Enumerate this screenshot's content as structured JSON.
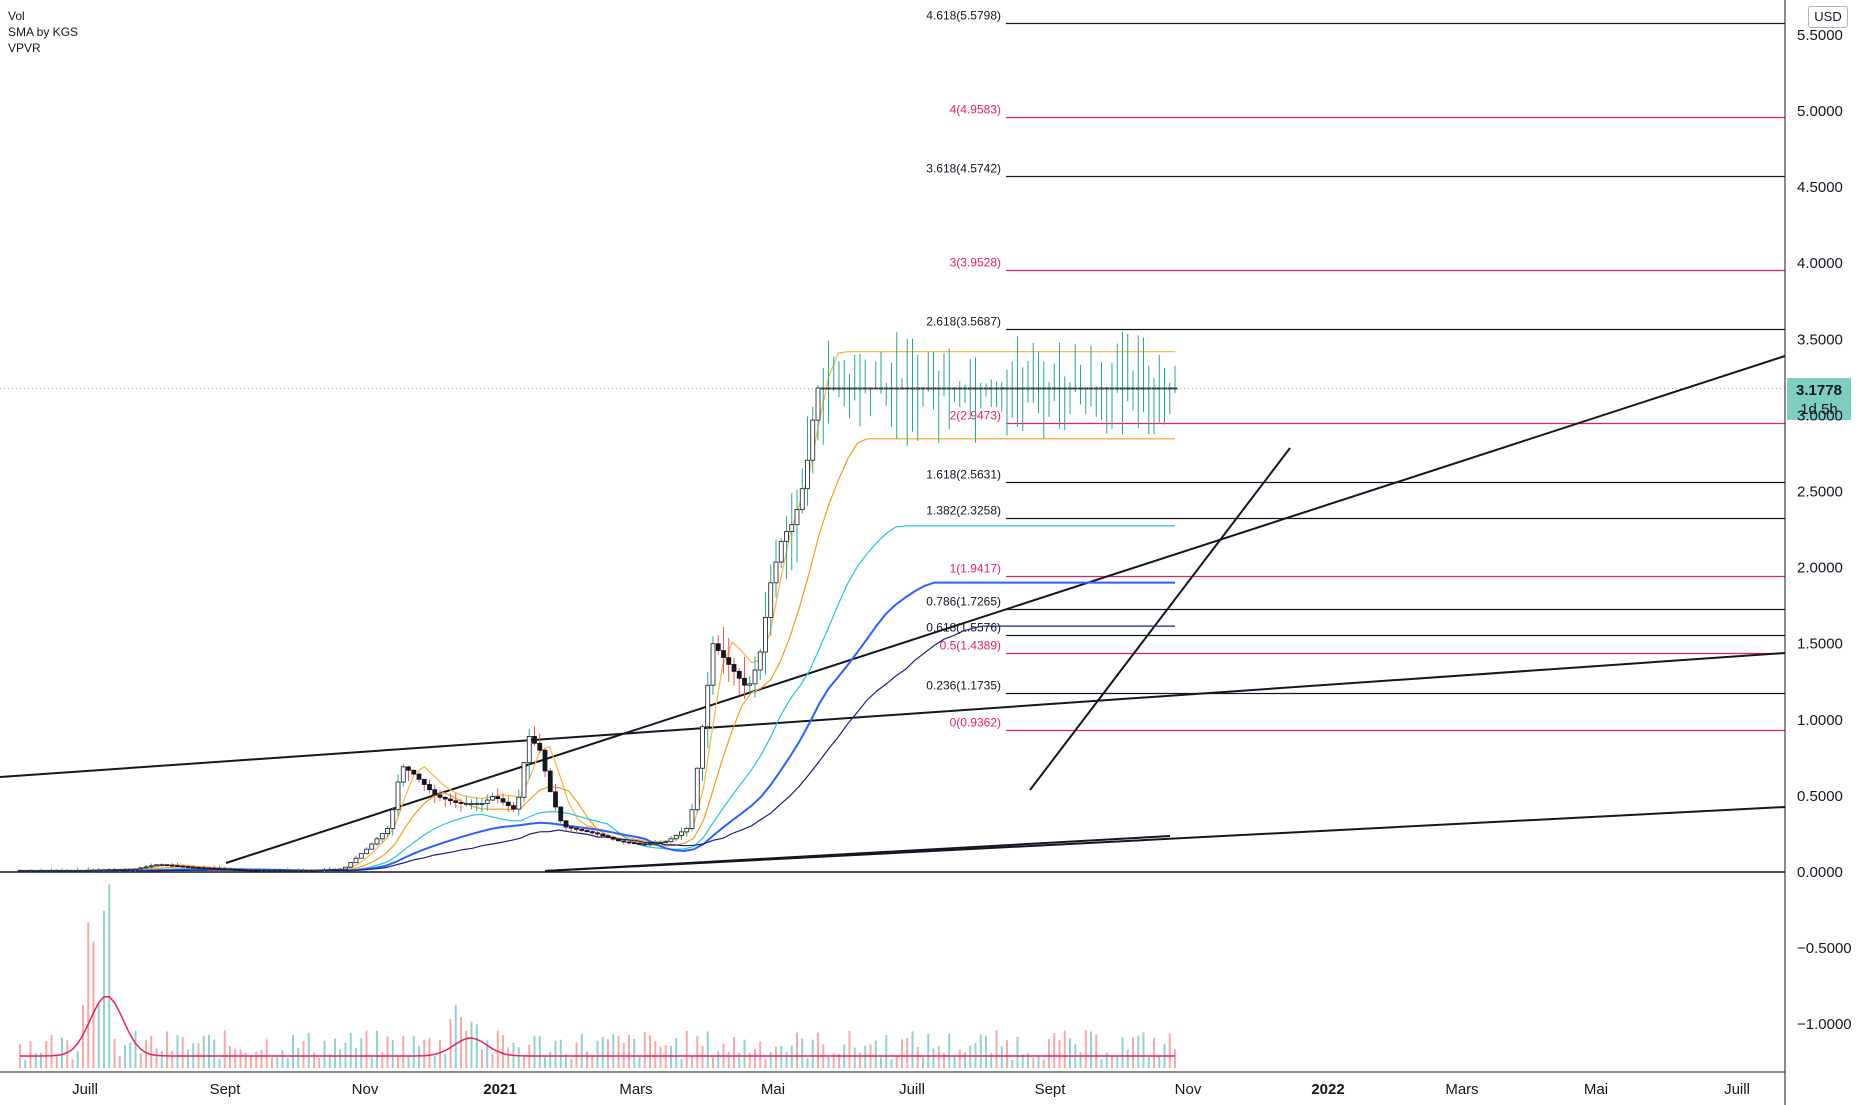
{
  "legend": {
    "items": [
      "Vol",
      "SMA by KGS",
      "VPVR"
    ]
  },
  "currency": "USD",
  "last_price": {
    "value": "3.1778",
    "countdown": "1d 5h",
    "color": "#7ecdc3"
  },
  "colors": {
    "fib_black": "#131722",
    "fib_pink": "#e91e63",
    "up": "#26a69a",
    "down": "#ef5350",
    "sma_fast": "#f6b73c",
    "sma_mid": "#f59c1a",
    "sma_teal": "#26c6da",
    "sma_blue": "#2962ff",
    "sma_navy": "#1a237e",
    "vol_ma": "#e91e63"
  },
  "chart_data": {
    "type": "candlestick",
    "price_axis": {
      "ticks": [
        5.5,
        5.0,
        4.5,
        4.0,
        3.5,
        3.0,
        2.5,
        2.0,
        1.5,
        1.0,
        0.5,
        0.0,
        -0.5,
        -1.0
      ],
      "labels": [
        "5.5000",
        "5.0000",
        "4.5000",
        "4.0000",
        "3.5000",
        "3.0000",
        "2.5000",
        "2.0000",
        "1.5000",
        "1.0000",
        "0.5000",
        "0.0000",
        "−0.5000",
        "−1.0000"
      ],
      "range": [
        -1.5,
        5.7
      ]
    },
    "time_axis": {
      "labels": [
        {
          "text": "Juill",
          "bold": false
        },
        {
          "text": "Sept",
          "bold": false
        },
        {
          "text": "Nov",
          "bold": false
        },
        {
          "text": "2021",
          "bold": true
        },
        {
          "text": "Mars",
          "bold": false
        },
        {
          "text": "Mai",
          "bold": false
        },
        {
          "text": "Juill",
          "bold": false
        },
        {
          "text": "Sept",
          "bold": false
        },
        {
          "text": "Nov",
          "bold": false
        },
        {
          "text": "2022",
          "bold": true
        },
        {
          "text": "Mars",
          "bold": false
        },
        {
          "text": "Mai",
          "bold": false
        },
        {
          "text": "Juill",
          "bold": false
        }
      ]
    },
    "fib_levels": [
      {
        "label": "4.618(5.5798)",
        "price": 5.5798,
        "color": "black"
      },
      {
        "label": "4(4.9583)",
        "price": 4.9583,
        "color": "pink"
      },
      {
        "label": "3.618(4.5742)",
        "price": 4.5742,
        "color": "black"
      },
      {
        "label": "3(3.9528)",
        "price": 3.9528,
        "color": "pink"
      },
      {
        "label": "2.618(3.5687)",
        "price": 3.5687,
        "color": "black"
      },
      {
        "label": "2(2.9473)",
        "price": 2.9473,
        "color": "pink"
      },
      {
        "label": "1.618(2.5631)",
        "price": 2.5631,
        "color": "black"
      },
      {
        "label": "1.382(2.3258)",
        "price": 2.3258,
        "color": "black"
      },
      {
        "label": "1(1.9417)",
        "price": 1.9417,
        "color": "pink"
      },
      {
        "label": "0.786(1.7265)",
        "price": 1.7265,
        "color": "black"
      },
      {
        "label": "0.618(1.5576)",
        "price": 1.5576,
        "color": "black"
      },
      {
        "label": "0.5(1.4389)",
        "price": 1.4389,
        "color": "pink"
      },
      {
        "label": "0.236(1.1735)",
        "price": 1.1735,
        "color": "black"
      },
      {
        "label": "0(0.9362)",
        "price": 0.9362,
        "color": "pink"
      }
    ],
    "price_path": [
      [
        0,
        0.01
      ],
      [
        0.05,
        0.01
      ],
      [
        0.1,
        0.02
      ],
      [
        0.12,
        0.05
      ],
      [
        0.15,
        0.03
      ],
      [
        0.2,
        0.01
      ],
      [
        0.25,
        0.01
      ],
      [
        0.28,
        0.02
      ],
      [
        0.3,
        0.15
      ],
      [
        0.32,
        0.3
      ],
      [
        0.33,
        0.7
      ],
      [
        0.34,
        0.65
      ],
      [
        0.36,
        0.5
      ],
      [
        0.38,
        0.45
      ],
      [
        0.4,
        0.45
      ],
      [
        0.41,
        0.5
      ],
      [
        0.43,
        0.4
      ],
      [
        0.44,
        0.9
      ],
      [
        0.45,
        0.8
      ],
      [
        0.46,
        0.5
      ],
      [
        0.47,
        0.3
      ],
      [
        0.5,
        0.25
      ],
      [
        0.52,
        0.2
      ],
      [
        0.54,
        0.18
      ],
      [
        0.56,
        0.2
      ],
      [
        0.58,
        0.3
      ],
      [
        0.6,
        1.5
      ],
      [
        0.62,
        1.3
      ],
      [
        0.63,
        1.2
      ],
      [
        0.64,
        1.4
      ],
      [
        0.65,
        1.9
      ],
      [
        0.66,
        2.2
      ],
      [
        0.67,
        2.3
      ],
      [
        0.68,
        2.6
      ],
      [
        0.69,
        3.18
      ]
    ],
    "trendlines": "drawn"
  }
}
